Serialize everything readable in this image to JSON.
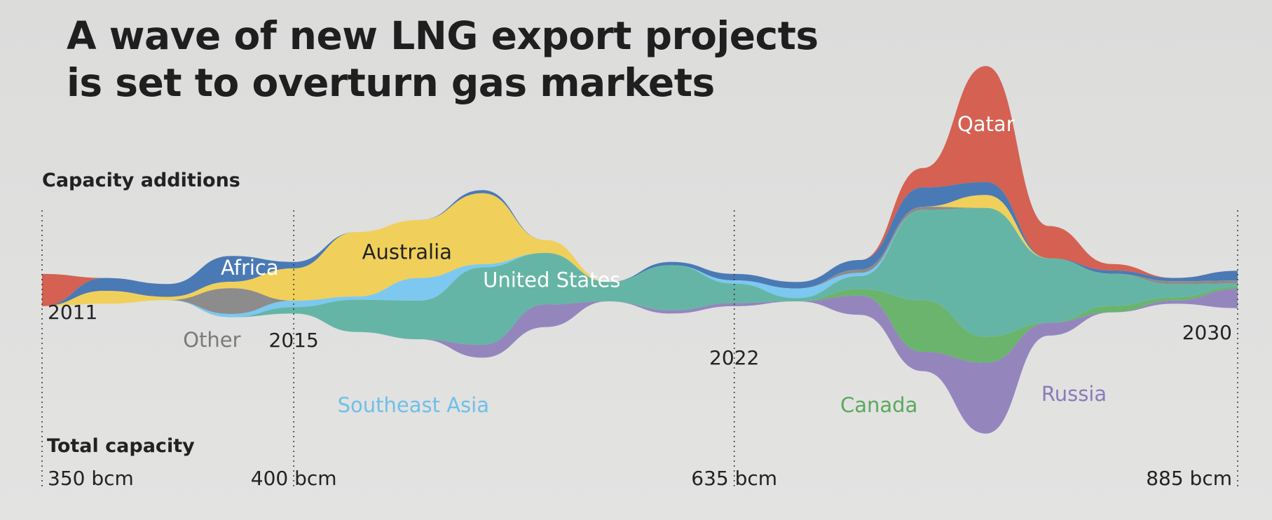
{
  "title_lines": [
    "A wave of new LNG export projects",
    "is set to overturn gas markets"
  ],
  "labels": {
    "capacity_additions": "Capacity additions",
    "total_capacity": "Total capacity"
  },
  "colors": {
    "background": "#e0e0df",
    "text": "#222222",
    "Qatar": "#d46152",
    "Africa": "#4a7ab5",
    "Australia": "#f0d05a",
    "Other": "#8c8c8c",
    "Southeast Asia": "#7cc8f0",
    "United States": "#65b5a6",
    "Canada": "#6ab46e",
    "Russia": "#9486bd"
  },
  "chart_data": {
    "type": "area",
    "subtype": "streamgraph",
    "x_range": [
      2011,
      2030
    ],
    "y_unit": "bcm",
    "milestones": [
      {
        "year": "2011",
        "total": "350 bcm"
      },
      {
        "year": "2015",
        "total": "400 bcm"
      },
      {
        "year": "2022",
        "total": "635 bcm"
      },
      {
        "year": "2030",
        "total": "885 bcm"
      }
    ],
    "x": [
      2011,
      2012,
      2013,
      2014,
      2015,
      2016,
      2017,
      2018,
      2019,
      2020,
      2021,
      2022,
      2023,
      2024,
      2025,
      2026,
      2027,
      2028,
      2029,
      2030
    ],
    "series_order": [
      "Qatar",
      "Africa",
      "Australia",
      "Other",
      "Southeast Asia",
      "United States",
      "Canada",
      "Russia"
    ],
    "series": [
      {
        "name": "Qatar",
        "values": [
          5,
          0,
          0,
          0,
          0,
          0,
          0,
          0,
          0,
          0,
          0,
          0,
          0,
          0,
          3,
          18,
          5,
          1,
          0,
          0
        ]
      },
      {
        "name": "Africa",
        "values": [
          0,
          2,
          2,
          4,
          1,
          0,
          0,
          0.5,
          0,
          0,
          0.5,
          1,
          1,
          1.5,
          3,
          2,
          0,
          0.5,
          0.5,
          1.5
        ]
      },
      {
        "name": "Australia",
        "values": [
          0,
          2,
          0.5,
          1,
          5,
          10,
          9,
          11,
          2,
          0,
          0,
          0,
          0,
          0,
          0,
          2,
          0,
          0,
          0,
          0
        ]
      },
      {
        "name": "Other",
        "values": [
          0,
          0,
          0,
          4,
          0,
          0,
          0,
          0,
          0,
          0,
          0,
          0,
          0,
          0.5,
          0.5,
          0,
          0,
          0,
          0.5,
          0.5
        ]
      },
      {
        "name": "Southeast Asia",
        "values": [
          0,
          0,
          0,
          0.5,
          1,
          0.5,
          3.5,
          0.5,
          0,
          0,
          0,
          0.5,
          1.5,
          0.5,
          0,
          0,
          0,
          0,
          0,
          0
        ]
      },
      {
        "name": "United States",
        "values": [
          0,
          0,
          0,
          0,
          1,
          5,
          6,
          12,
          8,
          3,
          7,
          3,
          0.5,
          2,
          14,
          20,
          10,
          5,
          2,
          0.5
        ]
      },
      {
        "name": "Canada",
        "values": [
          0,
          0,
          0,
          0,
          0,
          0,
          0,
          0,
          0,
          0,
          0,
          0,
          0,
          1,
          8,
          4,
          0,
          1,
          0.5,
          0.3
        ]
      },
      {
        "name": "Russia",
        "values": [
          0,
          0,
          0,
          0,
          0,
          0,
          0,
          2,
          3.5,
          0,
          0.5,
          0.5,
          0,
          3,
          3,
          11,
          2,
          0,
          0.5,
          3
        ]
      }
    ]
  }
}
